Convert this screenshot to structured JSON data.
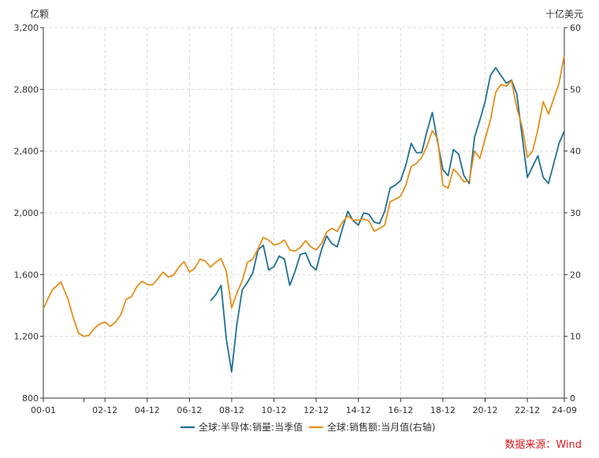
{
  "chart_data": {
    "type": "line",
    "left_axis_unit": "亿颗",
    "right_axis_unit": "十亿美元",
    "source_text": "数据来源：Wind",
    "x_tick_labels": [
      "00-01",
      "02-12",
      "04-12",
      "06-12",
      "08-12",
      "10-12",
      "12-12",
      "14-12",
      "16-12",
      "18-12",
      "20-12",
      "22-12",
      "24-09"
    ],
    "y_left_ticks": [
      "800",
      "1,200",
      "1,600",
      "2,000",
      "2,400",
      "2,800",
      "3,200"
    ],
    "y_right_ticks": [
      "0",
      "10",
      "20",
      "30",
      "40",
      "50",
      "60"
    ],
    "ylim_left": [
      800,
      3200
    ],
    "ylim_right": [
      0,
      60
    ],
    "xlim": [
      "2000-01",
      "2024-09"
    ],
    "grid": true,
    "legend_position": "bottom",
    "series": [
      {
        "name": "全球:半导体:销量:当季值",
        "axis": "left",
        "color": "#1f6f94",
        "points": [
          [
            "2007-12",
            1430
          ],
          [
            "2008-03",
            1470
          ],
          [
            "2008-06",
            1530
          ],
          [
            "2008-09",
            1180
          ],
          [
            "2008-12",
            970
          ],
          [
            "2009-03",
            1280
          ],
          [
            "2009-06",
            1500
          ],
          [
            "2009-09",
            1550
          ],
          [
            "2009-12",
            1610
          ],
          [
            "2010-03",
            1760
          ],
          [
            "2010-06",
            1790
          ],
          [
            "2010-09",
            1630
          ],
          [
            "2010-12",
            1650
          ],
          [
            "2011-03",
            1720
          ],
          [
            "2011-06",
            1700
          ],
          [
            "2011-09",
            1530
          ],
          [
            "2011-12",
            1620
          ],
          [
            "2012-03",
            1730
          ],
          [
            "2012-06",
            1740
          ],
          [
            "2012-09",
            1660
          ],
          [
            "2012-12",
            1630
          ],
          [
            "2013-03",
            1760
          ],
          [
            "2013-06",
            1850
          ],
          [
            "2013-09",
            1800
          ],
          [
            "2013-12",
            1780
          ],
          [
            "2014-03",
            1900
          ],
          [
            "2014-06",
            2010
          ],
          [
            "2014-09",
            1950
          ],
          [
            "2014-12",
            1920
          ],
          [
            "2015-03",
            2000
          ],
          [
            "2015-06",
            1990
          ],
          [
            "2015-09",
            1940
          ],
          [
            "2015-12",
            1930
          ],
          [
            "2016-03",
            2010
          ],
          [
            "2016-06",
            2160
          ],
          [
            "2016-09",
            2180
          ],
          [
            "2016-12",
            2210
          ],
          [
            "2017-03",
            2310
          ],
          [
            "2017-06",
            2450
          ],
          [
            "2017-09",
            2390
          ],
          [
            "2017-12",
            2390
          ],
          [
            "2018-03",
            2530
          ],
          [
            "2018-06",
            2650
          ],
          [
            "2018-09",
            2460
          ],
          [
            "2018-12",
            2280
          ],
          [
            "2019-03",
            2240
          ],
          [
            "2019-06",
            2410
          ],
          [
            "2019-09",
            2380
          ],
          [
            "2019-12",
            2240
          ],
          [
            "2020-03",
            2190
          ],
          [
            "2020-06",
            2490
          ],
          [
            "2020-09",
            2600
          ],
          [
            "2020-12",
            2720
          ],
          [
            "2021-03",
            2890
          ],
          [
            "2021-06",
            2940
          ],
          [
            "2021-09",
            2890
          ],
          [
            "2021-12",
            2840
          ],
          [
            "2022-03",
            2860
          ],
          [
            "2022-06",
            2770
          ],
          [
            "2022-09",
            2500
          ],
          [
            "2022-12",
            2230
          ],
          [
            "2023-03",
            2300
          ],
          [
            "2023-06",
            2370
          ],
          [
            "2023-09",
            2230
          ],
          [
            "2023-12",
            2190
          ],
          [
            "2024-03",
            2320
          ],
          [
            "2024-06",
            2450
          ],
          [
            "2024-09",
            2530
          ]
        ]
      },
      {
        "name": "全球:销售额:当月值(右轴)",
        "axis": "right",
        "color": "#e58e1a",
        "points": [
          [
            "2000-01",
            14.5
          ],
          [
            "2000-06",
            17.5
          ],
          [
            "2000-11",
            18.8
          ],
          [
            "2001-03",
            16.0
          ],
          [
            "2001-06",
            13.0
          ],
          [
            "2001-09",
            10.5
          ],
          [
            "2001-12",
            10.0
          ],
          [
            "2002-03",
            10.2
          ],
          [
            "2002-06",
            11.3
          ],
          [
            "2002-09",
            12.0
          ],
          [
            "2002-12",
            12.3
          ],
          [
            "2003-03",
            11.6
          ],
          [
            "2003-06",
            12.3
          ],
          [
            "2003-09",
            13.5
          ],
          [
            "2003-12",
            16.0
          ],
          [
            "2004-03",
            16.4
          ],
          [
            "2004-06",
            18.0
          ],
          [
            "2004-09",
            18.9
          ],
          [
            "2004-12",
            18.4
          ],
          [
            "2005-03",
            18.3
          ],
          [
            "2005-06",
            19.3
          ],
          [
            "2005-09",
            20.4
          ],
          [
            "2005-12",
            19.6
          ],
          [
            "2006-03",
            19.9
          ],
          [
            "2006-06",
            21.2
          ],
          [
            "2006-09",
            22.1
          ],
          [
            "2006-12",
            20.4
          ],
          [
            "2007-03",
            21.0
          ],
          [
            "2007-06",
            22.5
          ],
          [
            "2007-09",
            22.2
          ],
          [
            "2007-12",
            21.2
          ],
          [
            "2008-03",
            22.0
          ],
          [
            "2008-06",
            22.6
          ],
          [
            "2008-09",
            20.5
          ],
          [
            "2008-12",
            14.6
          ],
          [
            "2009-03",
            17.0
          ],
          [
            "2009-06",
            19.0
          ],
          [
            "2009-09",
            22.0
          ],
          [
            "2009-12",
            22.5
          ],
          [
            "2010-03",
            24.2
          ],
          [
            "2010-06",
            26.0
          ],
          [
            "2010-09",
            25.6
          ],
          [
            "2010-12",
            24.8
          ],
          [
            "2011-03",
            25.0
          ],
          [
            "2011-06",
            25.6
          ],
          [
            "2011-09",
            24.0
          ],
          [
            "2011-12",
            23.8
          ],
          [
            "2012-03",
            24.4
          ],
          [
            "2012-06",
            25.5
          ],
          [
            "2012-09",
            24.5
          ],
          [
            "2012-12",
            24.0
          ],
          [
            "2013-03",
            25.0
          ],
          [
            "2013-06",
            26.9
          ],
          [
            "2013-09",
            27.5
          ],
          [
            "2013-12",
            27.0
          ],
          [
            "2014-03",
            28.5
          ],
          [
            "2014-06",
            29.5
          ],
          [
            "2014-09",
            28.8
          ],
          [
            "2014-12",
            28.8
          ],
          [
            "2015-03",
            29.0
          ],
          [
            "2015-06",
            28.7
          ],
          [
            "2015-09",
            27.0
          ],
          [
            "2015-12",
            27.5
          ],
          [
            "2016-03",
            28.0
          ],
          [
            "2016-06",
            31.8
          ],
          [
            "2016-09",
            32.2
          ],
          [
            "2016-12",
            32.7
          ],
          [
            "2017-03",
            34.5
          ],
          [
            "2017-06",
            37.5
          ],
          [
            "2017-09",
            38.0
          ],
          [
            "2017-12",
            39.0
          ],
          [
            "2018-03",
            40.8
          ],
          [
            "2018-06",
            43.3
          ],
          [
            "2018-09",
            42.0
          ],
          [
            "2018-12",
            34.5
          ],
          [
            "2019-03",
            34.0
          ],
          [
            "2019-06",
            37.1
          ],
          [
            "2019-09",
            36.2
          ],
          [
            "2019-12",
            35.0
          ],
          [
            "2020-03",
            35.2
          ],
          [
            "2020-06",
            40.0
          ],
          [
            "2020-09",
            38.8
          ],
          [
            "2020-12",
            42.0
          ],
          [
            "2021-03",
            45.0
          ],
          [
            "2021-06",
            49.5
          ],
          [
            "2021-09",
            50.8
          ],
          [
            "2021-12",
            50.5
          ],
          [
            "2022-03",
            51.4
          ],
          [
            "2022-06",
            47.0
          ],
          [
            "2022-09",
            44.0
          ],
          [
            "2022-12",
            39.0
          ],
          [
            "2023-03",
            40.0
          ],
          [
            "2023-06",
            43.5
          ],
          [
            "2023-09",
            48.0
          ],
          [
            "2023-12",
            46.0
          ],
          [
            "2024-03",
            48.5
          ],
          [
            "2024-06",
            51.0
          ],
          [
            "2024-09",
            55.5
          ]
        ]
      }
    ]
  }
}
